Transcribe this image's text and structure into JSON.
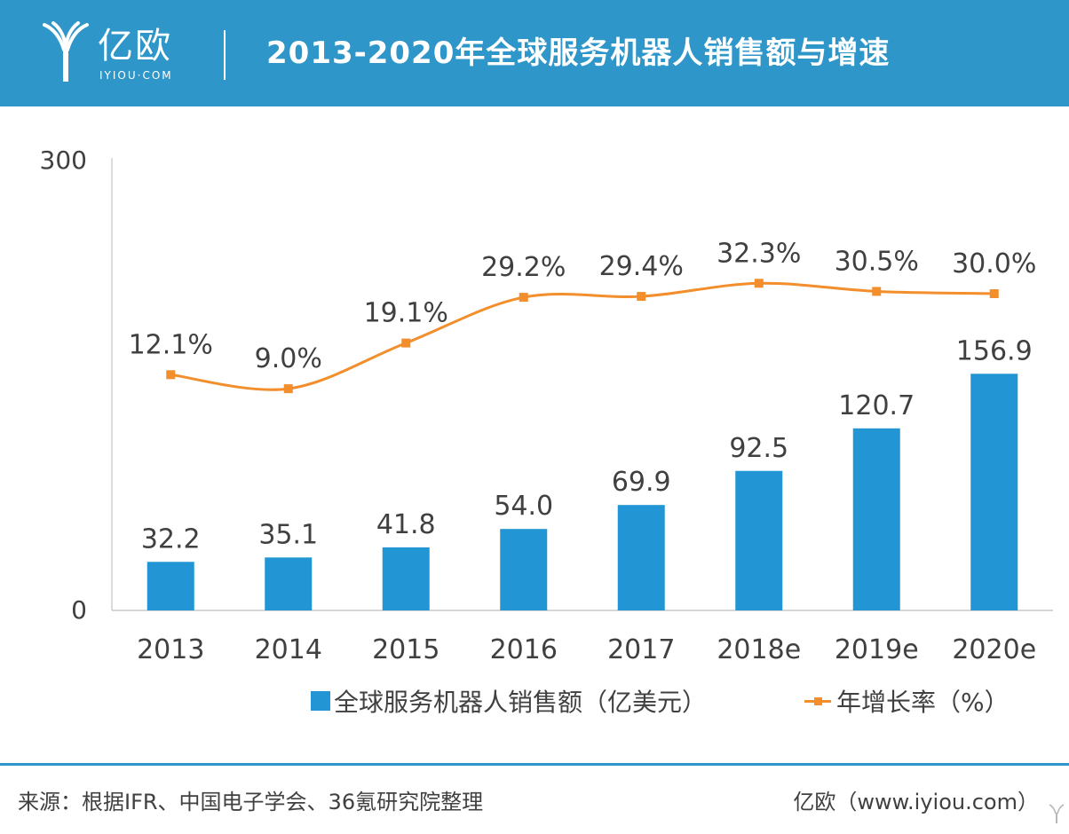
{
  "header": {
    "logo_cn": "亿欧",
    "logo_en": "IYIOU·COM",
    "title": "2013-2020年全球服务机器人销售额与增速",
    "background_color": "#2e96c9"
  },
  "chart_data": {
    "type": "bar",
    "title": "2013-2020年全球服务机器人销售额与增速",
    "categories": [
      "2013",
      "2014",
      "2015",
      "2016",
      "2017",
      "2018e",
      "2019e",
      "2020e"
    ],
    "ylim": [
      0,
      300
    ],
    "y_ticks": [
      "300",
      "0"
    ],
    "grid": false,
    "legend_position": "bottom",
    "series": [
      {
        "name": "全球服务机器人销售额（亿美元）",
        "type": "bar",
        "color": "#2296d4",
        "values": [
          32.2,
          35.1,
          41.8,
          54.0,
          69.9,
          92.5,
          120.7,
          156.9
        ],
        "labels": [
          "32.2",
          "35.1",
          "41.8",
          "54.0",
          "69.9",
          "92.5",
          "120.7",
          "156.9"
        ]
      },
      {
        "name": "年增长率（%）",
        "type": "line",
        "color": "#f28e2b",
        "values": [
          12.1,
          9.0,
          19.1,
          29.2,
          29.4,
          32.3,
          30.5,
          30.0
        ],
        "labels": [
          "12.1%",
          "9.0%",
          "19.1%",
          "29.2%",
          "29.4%",
          "32.3%",
          "30.5%",
          "30.0%"
        ],
        "axis": "secondary",
        "ylim": [
          -40,
          60
        ]
      }
    ]
  },
  "footer": {
    "source": "来源：根据IFR、中国电子学会、36氪研究院整理",
    "credit": "亿欧（www.iyiou.com）"
  }
}
